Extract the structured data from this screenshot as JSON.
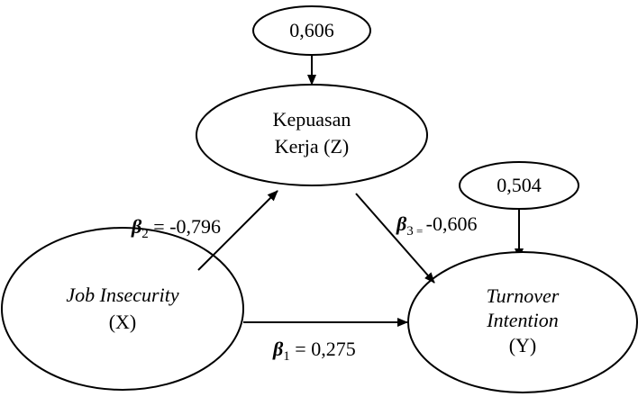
{
  "nodes": {
    "error_z": {
      "value": "0,606"
    },
    "kepuasan": {
      "line1": "Kepuasan",
      "line2": "Kerja (Z)"
    },
    "error_y": {
      "value": "0,504"
    },
    "job_insecurity": {
      "line1": "Job Insecurity",
      "line2": "(X)"
    },
    "turnover": {
      "line1": "Turnover",
      "line2": "Intention",
      "line3": "(Y)"
    }
  },
  "paths": {
    "beta1": {
      "symbol": "β",
      "sub": "1",
      "text": " = 0,275"
    },
    "beta2": {
      "symbol": "β",
      "sub": "2",
      "text": " = -0,796"
    },
    "beta3": {
      "symbol": "β",
      "sub": "3",
      "eq": " = ",
      "text": "-0,606"
    }
  }
}
